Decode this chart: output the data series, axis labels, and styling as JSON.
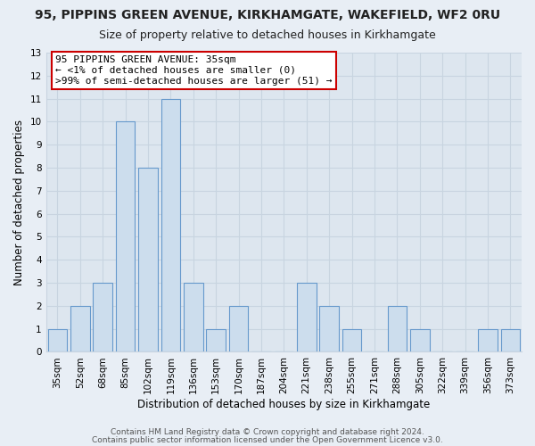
{
  "title": "95, PIPPINS GREEN AVENUE, KIRKHAMGATE, WAKEFIELD, WF2 0RU",
  "subtitle": "Size of property relative to detached houses in Kirkhamgate",
  "xlabel": "Distribution of detached houses by size in Kirkhamgate",
  "ylabel": "Number of detached properties",
  "bar_labels": [
    "35sqm",
    "52sqm",
    "68sqm",
    "85sqm",
    "102sqm",
    "119sqm",
    "136sqm",
    "153sqm",
    "170sqm",
    "187sqm",
    "204sqm",
    "221sqm",
    "238sqm",
    "255sqm",
    "271sqm",
    "288sqm",
    "305sqm",
    "322sqm",
    "339sqm",
    "356sqm",
    "373sqm"
  ],
  "bar_values": [
    1,
    2,
    3,
    10,
    8,
    11,
    3,
    1,
    2,
    0,
    0,
    3,
    2,
    1,
    0,
    2,
    1,
    0,
    0,
    1,
    1
  ],
  "bar_color": "#ccdded",
  "bar_edge_color": "#6699cc",
  "ylim": [
    0,
    13
  ],
  "yticks": [
    0,
    1,
    2,
    3,
    4,
    5,
    6,
    7,
    8,
    9,
    10,
    11,
    12,
    13
  ],
  "annotation_text_line1": "95 PIPPINS GREEN AVENUE: 35sqm",
  "annotation_text_line2": "← <1% of detached houses are smaller (0)",
  "annotation_text_line3": ">99% of semi-detached houses are larger (51) →",
  "footer_line1": "Contains HM Land Registry data © Crown copyright and database right 2024.",
  "footer_line2": "Contains public sector information licensed under the Open Government Licence v3.0.",
  "background_color": "#e8eef5",
  "grid_color": "#c8d4e0",
  "plot_bg_color": "#dde6ef",
  "title_fontsize": 10,
  "subtitle_fontsize": 9,
  "tick_label_fontsize": 7.5,
  "ylabel_fontsize": 8.5,
  "xlabel_fontsize": 8.5,
  "annotation_fontsize": 8,
  "footer_fontsize": 6.5
}
